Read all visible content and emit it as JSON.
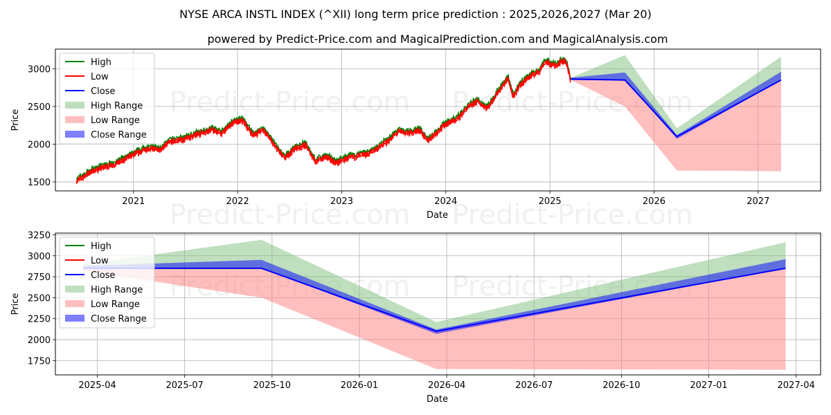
{
  "title": "NYSE ARCA INSTL INDEX (^XII) long term price prediction : 2025,2026,2027 (Mar 20)",
  "subtitle": "powered by Predict-Price.com and MagicalPrediction.com and MagicalAnalysis.com",
  "watermark": "Predict-Price.com",
  "colors": {
    "high": "#008000",
    "low": "#ff0000",
    "close": "#0000ff",
    "high_range": "#7fbf7f",
    "low_range": "#ff7f7f",
    "close_range": "#0000ff",
    "grid": "#b0b0b0"
  },
  "legend": [
    "High",
    "Low",
    "Close",
    "High Range",
    "Low Range",
    "Close Range"
  ],
  "chart_data": [
    {
      "type": "line",
      "name": "history-and-forecast",
      "xlabel": "Date",
      "ylabel": "Price",
      "xlim": [
        2020.25,
        2027.6
      ],
      "ylim": [
        1380,
        3260
      ],
      "x_ticks": [
        2021,
        2022,
        2023,
        2024,
        2025,
        2026,
        2027
      ],
      "x_tick_labels": [
        "2021",
        "2022",
        "2023",
        "2024",
        "2025",
        "2026",
        "2027"
      ],
      "y_ticks": [
        1500,
        2000,
        2500,
        3000
      ],
      "y_tick_labels": [
        "1500",
        "2000",
        "2500",
        "3000"
      ],
      "legend_position": "top-left",
      "history_anchors": {
        "x": [
          2020.45,
          2020.6,
          2020.75,
          2020.85,
          2021.0,
          2021.15,
          2021.25,
          2021.35,
          2021.5,
          2021.65,
          2021.75,
          2021.85,
          2021.95,
          2022.05,
          2022.15,
          2022.25,
          2022.35,
          2022.45,
          2022.55,
          2022.65,
          2022.75,
          2022.85,
          2022.95,
          2023.05,
          2023.15,
          2023.25,
          2023.35,
          2023.45,
          2023.55,
          2023.65,
          2023.75,
          2023.82,
          2023.9,
          2024.0,
          2024.1,
          2024.2,
          2024.3,
          2024.4,
          2024.5,
          2024.6,
          2024.65,
          2024.7,
          2024.8,
          2024.9,
          2024.95,
          2025.05,
          2025.1,
          2025.15,
          2025.2
        ],
        "close": [
          1520,
          1650,
          1720,
          1760,
          1870,
          1960,
          1930,
          2040,
          2080,
          2160,
          2200,
          2150,
          2290,
          2320,
          2130,
          2200,
          2000,
          1820,
          1950,
          2000,
          1780,
          1840,
          1760,
          1820,
          1850,
          1880,
          1960,
          2060,
          2180,
          2150,
          2200,
          2050,
          2150,
          2280,
          2330,
          2480,
          2580,
          2490,
          2700,
          2880,
          2620,
          2780,
          2900,
          2980,
          3100,
          3050,
          3100,
          3120,
          2860
        ]
      },
      "forecast": {
        "x": [
          2025.2,
          2025.72,
          2026.22,
          2027.22
        ],
        "close": [
          2862,
          2850,
          2100,
          2850
        ],
        "high_range": [
          2880,
          3180,
          2210,
          3160
        ],
        "low_range": [
          2850,
          2500,
          1650,
          1640
        ],
        "close_range_upper": [
          2880,
          2950,
          2120,
          2960
        ],
        "close_range_lower": [
          2850,
          2850,
          2070,
          2850
        ]
      }
    },
    {
      "type": "line",
      "name": "forecast-zoom",
      "xlabel": "Date",
      "ylabel": "Price",
      "xlim": [
        2025.13,
        2027.32
      ],
      "ylim": [
        1580,
        3270
      ],
      "x_ticks": [
        2025.25,
        2025.5,
        2025.75,
        2026.0,
        2026.25,
        2026.5,
        2026.75,
        2027.0,
        2027.25
      ],
      "x_tick_labels": [
        "2025-04",
        "2025-07",
        "2025-10",
        "2026-01",
        "2026-04",
        "2026-07",
        "2026-10",
        "2027-01",
        "2027-04"
      ],
      "y_ticks": [
        1750,
        2000,
        2250,
        2500,
        2750,
        3000,
        3250
      ],
      "y_tick_labels": [
        "1750",
        "2000",
        "2250",
        "2500",
        "2750",
        "3000",
        "3250"
      ],
      "legend_position": "top-left",
      "forecast": {
        "x": [
          2025.21,
          2025.72,
          2026.22,
          2027.22
        ],
        "close": [
          2850,
          2850,
          2100,
          2850
        ],
        "high_range": [
          2900,
          3190,
          2210,
          3160
        ],
        "low_range": [
          2820,
          2500,
          1650,
          1640
        ],
        "close_range_upper": [
          2880,
          2950,
          2120,
          2960
        ],
        "close_range_lower": [
          2850,
          2850,
          2070,
          2850
        ]
      }
    }
  ]
}
